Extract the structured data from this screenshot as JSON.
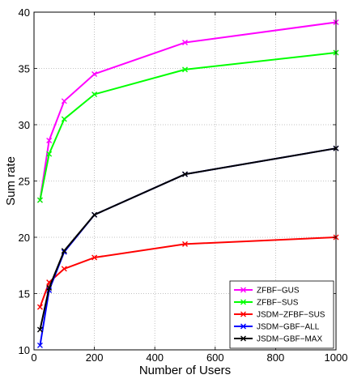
{
  "chart_data": {
    "type": "line",
    "title": "",
    "xlabel": "Number of Users",
    "ylabel": "Sum rate",
    "xlim": [
      0,
      1000
    ],
    "ylim": [
      10,
      40
    ],
    "xticks": [
      0,
      200,
      400,
      600,
      800,
      1000
    ],
    "yticks": [
      10,
      15,
      20,
      25,
      30,
      35,
      40
    ],
    "grid": true,
    "grid_style": "dotted",
    "legend_position": "bottom-right",
    "marker": "x",
    "series": [
      {
        "name": "ZFBF−GUS",
        "color": "#ff00ff",
        "x": [
          20,
          50,
          100,
          200,
          500,
          1000
        ],
        "y": [
          23.3,
          28.6,
          32.1,
          34.5,
          37.3,
          39.1
        ]
      },
      {
        "name": "ZFBF−SUS",
        "color": "#00ff00",
        "x": [
          20,
          50,
          100,
          200,
          500,
          1000
        ],
        "y": [
          23.3,
          27.4,
          30.5,
          32.7,
          34.9,
          36.4
        ]
      },
      {
        "name": "JSDM−ZFBF−SUS",
        "color": "#ff0000",
        "x": [
          20,
          50,
          100,
          200,
          500,
          1000
        ],
        "y": [
          13.8,
          16.0,
          17.2,
          18.2,
          19.4,
          20.0
        ]
      },
      {
        "name": "JSDM−GBF−ALL",
        "color": "#0000ff",
        "x": [
          20,
          50,
          100,
          200,
          500,
          1000
        ],
        "y": [
          10.4,
          15.3,
          18.7,
          22.0,
          25.6,
          27.9
        ]
      },
      {
        "name": "JSDM−GBF−MAX",
        "color": "#000000",
        "x": [
          20,
          50,
          100,
          200,
          500,
          1000
        ],
        "y": [
          11.8,
          15.5,
          18.8,
          22.0,
          25.6,
          27.9
        ]
      }
    ]
  }
}
